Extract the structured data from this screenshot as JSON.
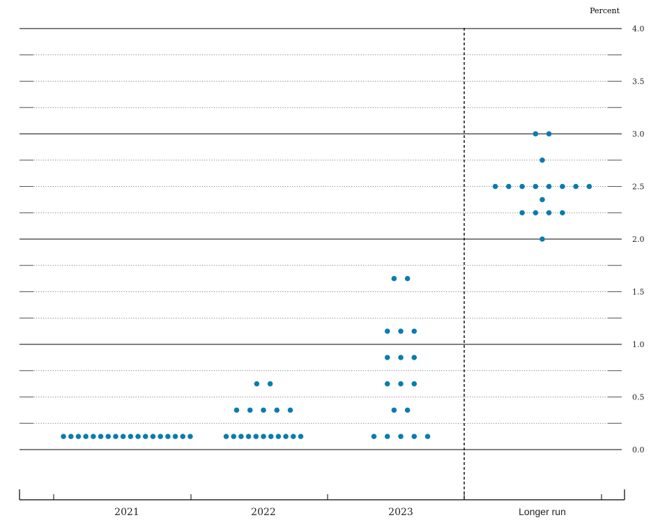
{
  "chart_data": {
    "type": "scatter",
    "title": "",
    "xlabel": "",
    "ylabel": "Percent",
    "categories": [
      "2021",
      "2022",
      "2023",
      "Longer run"
    ],
    "ylim": [
      -0.5,
      4.0
    ],
    "y_ticks": [
      "0.0",
      "0.5",
      "1.0",
      "1.5",
      "2.0",
      "2.5",
      "3.0",
      "3.5",
      "4.0"
    ],
    "grid": true,
    "separator_before": "Longer run",
    "dot_color": "#0a7cae",
    "points": [
      {
        "category": "2021",
        "y": 0.125,
        "count": 18
      },
      {
        "category": "2022",
        "y": 0.125,
        "count": 11
      },
      {
        "category": "2022",
        "y": 0.375,
        "count": 5
      },
      {
        "category": "2022",
        "y": 0.625,
        "count": 2
      },
      {
        "category": "2023",
        "y": 0.125,
        "count": 5
      },
      {
        "category": "2023",
        "y": 0.375,
        "count": 2
      },
      {
        "category": "2023",
        "y": 0.625,
        "count": 3
      },
      {
        "category": "2023",
        "y": 0.875,
        "count": 3
      },
      {
        "category": "2023",
        "y": 1.125,
        "count": 3
      },
      {
        "category": "2023",
        "y": 1.625,
        "count": 2
      },
      {
        "category": "Longer run",
        "y": 2.0,
        "count": 1
      },
      {
        "category": "Longer run",
        "y": 2.25,
        "count": 4
      },
      {
        "category": "Longer run",
        "y": 2.375,
        "count": 1
      },
      {
        "category": "Longer run",
        "y": 2.5,
        "count": 8
      },
      {
        "category": "Longer run",
        "y": 2.75,
        "count": 1
      },
      {
        "category": "Longer run",
        "y": 3.0,
        "count": 2
      }
    ]
  }
}
